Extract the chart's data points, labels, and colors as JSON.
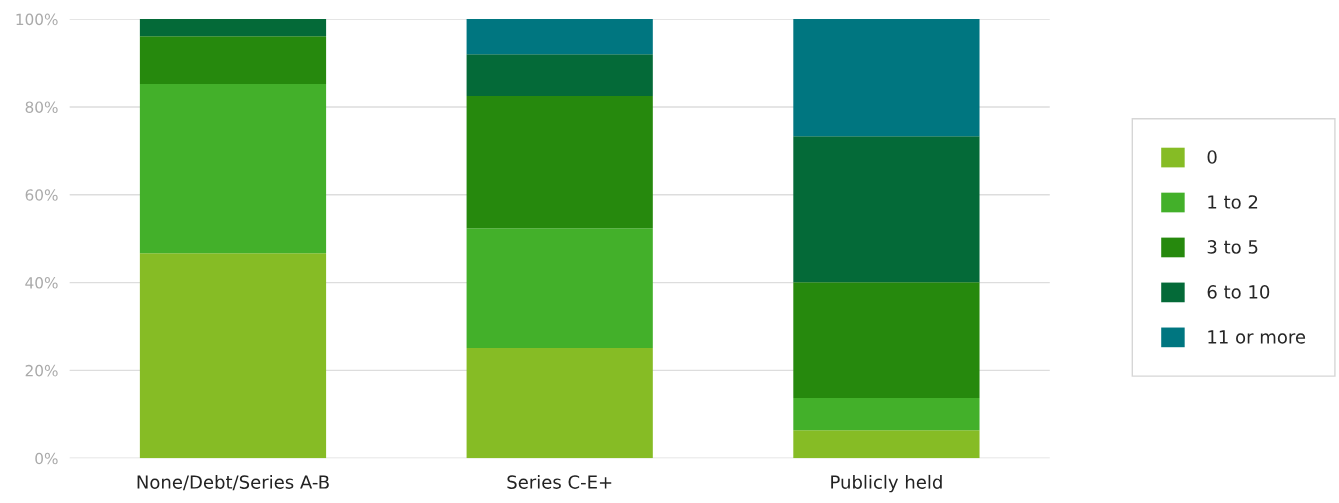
{
  "chart_data": {
    "type": "bar",
    "stacked": true,
    "categories": [
      "None/Debt/Series A-B",
      "Series C-E+",
      "Publicly held"
    ],
    "series": [
      {
        "name": "0",
        "color": "#86bc25",
        "values": [
          46.7,
          25.1,
          6.4
        ]
      },
      {
        "name": "1 to 2",
        "color": "#43b02a",
        "values": [
          38.5,
          27.3,
          7.3
        ]
      },
      {
        "name": "3 to 5",
        "color": "#26890d",
        "values": [
          10.9,
          30.1,
          26.4
        ]
      },
      {
        "name": "6 to 10",
        "color": "#046a38",
        "values": [
          3.9,
          9.5,
          33.2
        ]
      },
      {
        "name": "11 or more",
        "color": "#007680",
        "values": [
          0,
          8.0,
          26.7
        ]
      }
    ],
    "ylim": [
      0,
      100
    ],
    "yticks": [
      {
        "value": 0,
        "label": "0%"
      },
      {
        "value": 20,
        "label": "20%"
      },
      {
        "value": 40,
        "label": "40%"
      },
      {
        "value": 60,
        "label": "60%"
      },
      {
        "value": 80,
        "label": "80%"
      },
      {
        "value": 100,
        "label": "100%"
      }
    ],
    "grid": "y",
    "legend": "right"
  }
}
